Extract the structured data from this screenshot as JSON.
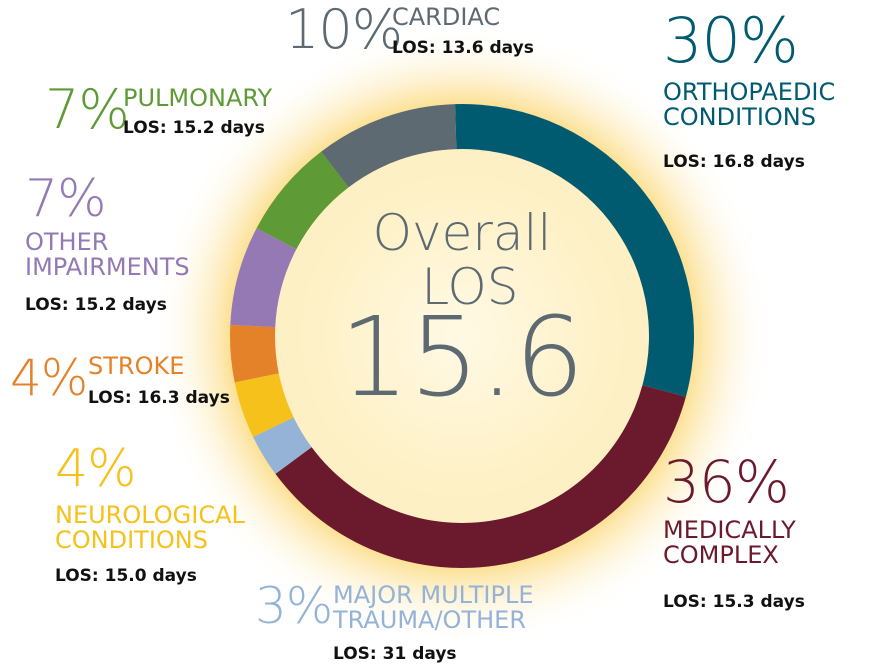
{
  "chart_data": {
    "type": "donut",
    "center_title": "Overall LOS",
    "center_value": "15.6",
    "series": [
      {
        "name": "ORTHOPAEDIC CONDITIONS",
        "color": "#005a70",
        "value": 30,
        "value_label": "30%",
        "los": "LOS: 16.8 days"
      },
      {
        "name": "MEDICALLY COMPLEX",
        "color": "#6b1a2e",
        "value": 36,
        "value_label": "36%",
        "los": "LOS: 15.3 days"
      },
      {
        "name": "MAJOR MULTIPLE TRAUMA/OTHER",
        "color": "#94b3d6",
        "value": 3,
        "value_label": "3%",
        "los": "LOS: 31 days"
      },
      {
        "name": "NEUROLOGICAL CONDITIONS",
        "color": "#f5c11a",
        "value": 4,
        "value_label": "4%",
        "los": "LOS: 15.0 days"
      },
      {
        "name": "STROKE",
        "color": "#e4822a",
        "value": 4,
        "value_label": "4%",
        "los": "LOS: 16.3 days"
      },
      {
        "name": "OTHER IMPAIRMENTS",
        "color": "#9479b4",
        "value": 7,
        "value_label": "7%",
        "los": "LOS: 15.2 days"
      },
      {
        "name": "PULMONARY",
        "color": "#5e9a35",
        "value": 7,
        "value_label": "7%",
        "los": "LOS: 15.2 days"
      },
      {
        "name": "CARDIAC",
        "color": "#5d6a72",
        "value": 10,
        "value_label": "10%",
        "los": "LOS: 13.6 days"
      }
    ]
  }
}
